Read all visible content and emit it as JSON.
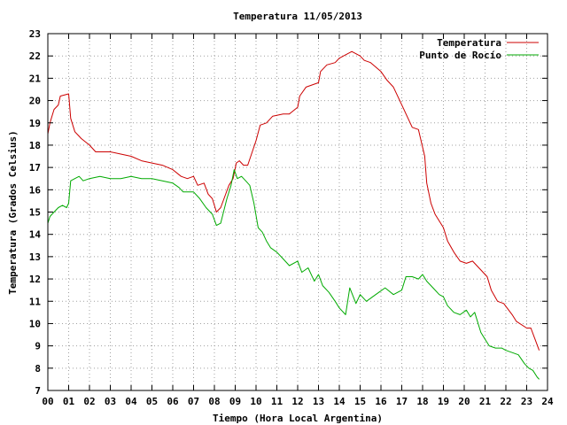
{
  "chart_data": {
    "type": "line",
    "title": "Temperatura 11/05/2013",
    "xlabel": "Tiempo (Hora Local Argentina)",
    "ylabel": "Temperatura (Grados Celsius)",
    "xlim": [
      0,
      24
    ],
    "ylim": [
      7,
      23
    ],
    "x_ticks": [
      "00",
      "01",
      "02",
      "03",
      "04",
      "05",
      "06",
      "07",
      "08",
      "09",
      "10",
      "11",
      "12",
      "13",
      "14",
      "15",
      "16",
      "17",
      "18",
      "19",
      "20",
      "21",
      "22",
      "23",
      "24"
    ],
    "y_ticks": [
      "7",
      "8",
      "9",
      "10",
      "11",
      "12",
      "13",
      "14",
      "15",
      "16",
      "17",
      "18",
      "19",
      "20",
      "21",
      "22",
      "23"
    ],
    "grid": true,
    "legend_position": "top-right",
    "series": [
      {
        "name": "Temperatura",
        "color": "#cc0000",
        "x": [
          0.0,
          0.1,
          0.3,
          0.5,
          0.6,
          1.0,
          1.1,
          1.3,
          1.5,
          1.6,
          2.0,
          2.3,
          3.0,
          3.5,
          4.0,
          4.5,
          5.0,
          5.5,
          6.0,
          6.4,
          6.7,
          7.0,
          7.2,
          7.5,
          7.7,
          7.9,
          8.1,
          8.3,
          8.7,
          8.9,
          9.05,
          9.2,
          9.4,
          9.6,
          10.0,
          10.2,
          10.5,
          10.8,
          11.3,
          11.6,
          12.0,
          12.1,
          12.4,
          13.0,
          13.1,
          13.4,
          13.8,
          14.0,
          14.4,
          14.6,
          15.0,
          15.2,
          15.5,
          16.0,
          16.3,
          16.6,
          17.1,
          17.5,
          17.8,
          18.1,
          18.2,
          18.4,
          18.6,
          19.0,
          19.2,
          19.5,
          19.8,
          20.1,
          20.4,
          21.1,
          21.3,
          21.6,
          21.9,
          22.3,
          22.5,
          23.0,
          23.2,
          23.4,
          23.6
        ],
        "values": [
          18.5,
          19.0,
          19.6,
          19.8,
          20.2,
          20.3,
          19.2,
          18.6,
          18.4,
          18.3,
          18.0,
          17.7,
          17.7,
          17.6,
          17.5,
          17.3,
          17.2,
          17.1,
          16.9,
          16.6,
          16.5,
          16.6,
          16.2,
          16.3,
          15.8,
          15.6,
          15.0,
          15.2,
          16.2,
          16.5,
          17.2,
          17.3,
          17.1,
          17.1,
          18.2,
          18.9,
          19.0,
          19.3,
          19.4,
          19.4,
          19.7,
          20.2,
          20.6,
          20.8,
          21.3,
          21.6,
          21.7,
          21.9,
          22.1,
          22.2,
          22.0,
          21.8,
          21.7,
          21.3,
          20.9,
          20.6,
          19.6,
          18.8,
          18.7,
          17.5,
          16.3,
          15.4,
          14.9,
          14.3,
          13.7,
          13.2,
          12.8,
          12.7,
          12.8,
          12.1,
          11.5,
          11.0,
          10.9,
          10.4,
          10.1,
          9.8,
          9.8,
          9.3,
          8.8
        ]
      },
      {
        "name": "Punto de Rocío",
        "color": "#00aa00",
        "x": [
          0.0,
          0.1,
          0.3,
          0.5,
          0.7,
          0.9,
          1.0,
          1.1,
          1.3,
          1.5,
          1.7,
          2.0,
          2.5,
          3.0,
          3.5,
          4.0,
          4.5,
          5.0,
          5.5,
          6.0,
          6.3,
          6.5,
          7.0,
          7.3,
          7.6,
          7.9,
          8.1,
          8.3,
          8.6,
          8.8,
          8.95,
          9.1,
          9.3,
          9.5,
          9.7,
          9.9,
          10.1,
          10.3,
          10.5,
          10.7,
          11.0,
          11.3,
          11.6,
          12.0,
          12.2,
          12.5,
          12.8,
          13.0,
          13.2,
          13.5,
          13.8,
          14.0,
          14.3,
          14.5,
          14.8,
          15.0,
          15.3,
          15.6,
          15.9,
          16.2,
          16.6,
          17.0,
          17.2,
          17.5,
          17.8,
          18.0,
          18.2,
          18.5,
          18.8,
          19.0,
          19.2,
          19.5,
          19.8,
          20.1,
          20.3,
          20.5,
          20.8,
          21.0,
          21.2,
          21.5,
          21.8,
          22.0,
          22.3,
          22.6,
          22.9,
          23.1,
          23.3,
          23.5,
          23.6
        ],
        "values": [
          14.5,
          14.8,
          15.0,
          15.2,
          15.3,
          15.2,
          15.4,
          16.4,
          16.5,
          16.6,
          16.4,
          16.5,
          16.6,
          16.5,
          16.5,
          16.6,
          16.5,
          16.5,
          16.4,
          16.3,
          16.1,
          15.9,
          15.9,
          15.6,
          15.2,
          14.9,
          14.4,
          14.5,
          15.6,
          16.2,
          16.9,
          16.5,
          16.6,
          16.4,
          16.2,
          15.4,
          14.3,
          14.1,
          13.7,
          13.4,
          13.2,
          12.9,
          12.6,
          12.8,
          12.3,
          12.5,
          11.9,
          12.2,
          11.7,
          11.4,
          11.0,
          10.7,
          10.4,
          11.6,
          10.9,
          11.3,
          11.0,
          11.2,
          11.4,
          11.6,
          11.3,
          11.5,
          12.1,
          12.1,
          12.0,
          12.2,
          11.9,
          11.6,
          11.3,
          11.2,
          10.8,
          10.5,
          10.4,
          10.6,
          10.3,
          10.5,
          9.6,
          9.3,
          9.0,
          8.9,
          8.9,
          8.8,
          8.7,
          8.6,
          8.2,
          8.0,
          7.9,
          7.6,
          7.5
        ]
      }
    ]
  }
}
